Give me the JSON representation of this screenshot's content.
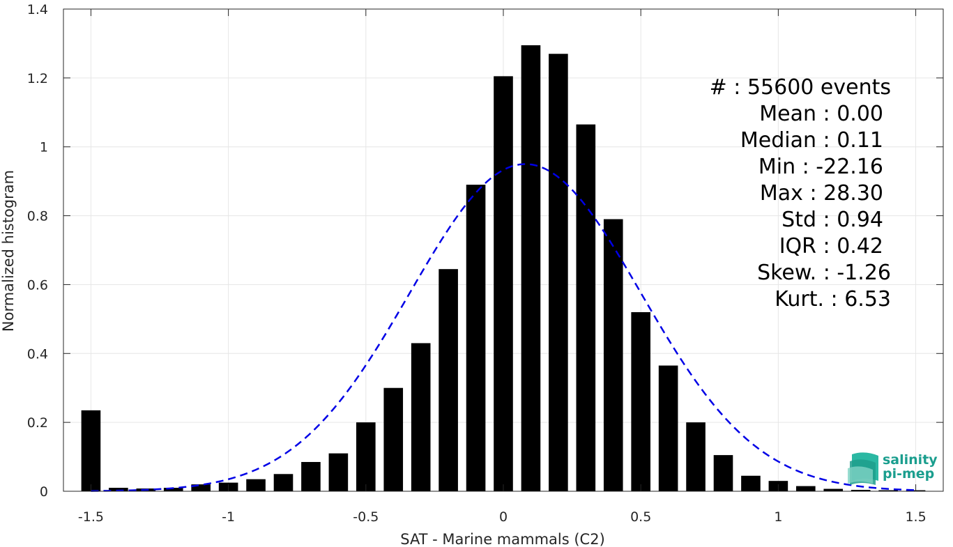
{
  "chart_data": {
    "type": "bar",
    "xlabel": "SAT - Marine mammals (C2)",
    "ylabel": "Normalized histogram",
    "xlim": [
      -1.6,
      1.6
    ],
    "ylim": [
      0,
      1.4
    ],
    "xticks": [
      -1.5,
      -1,
      -0.5,
      0,
      0.5,
      1,
      1.5
    ],
    "xtick_labels": [
      "-1.5",
      "-1",
      "-0.5",
      "0",
      "0.5",
      "1",
      "1.5"
    ],
    "yticks": [
      0,
      0.2,
      0.4,
      0.6,
      0.8,
      1,
      1.2,
      1.4
    ],
    "ytick_labels": [
      "0",
      "0.2",
      "0.4",
      "0.6",
      "0.8",
      "1",
      "1.2",
      "1.4"
    ],
    "grid": true,
    "bar_width": 0.07,
    "bar_color": "#000000",
    "x": [
      -1.5,
      -1.4,
      -1.3,
      -1.2,
      -1.1,
      -1.0,
      -0.9,
      -0.8,
      -0.7,
      -0.6,
      -0.5,
      -0.4,
      -0.3,
      -0.2,
      -0.1,
      0.0,
      0.1,
      0.2,
      0.3,
      0.4,
      0.5,
      0.6,
      0.7,
      0.8,
      0.9,
      1.0,
      1.1,
      1.2,
      1.3,
      1.4,
      1.5
    ],
    "values": [
      0.235,
      0.01,
      0.008,
      0.01,
      0.02,
      0.025,
      0.035,
      0.05,
      0.085,
      0.11,
      0.2,
      0.3,
      0.43,
      0.645,
      0.89,
      1.205,
      1.295,
      1.27,
      1.065,
      0.79,
      0.52,
      0.365,
      0.2,
      0.105,
      0.045,
      0.03,
      0.015,
      0.007,
      0.004,
      0.003,
      0.003
    ],
    "fit": {
      "type": "gaussian",
      "line_style": "dashed",
      "color": "#0000e6",
      "mean": 0.08,
      "std": 0.42,
      "peak": 0.95,
      "x_range": [
        -1.5,
        1.5
      ]
    },
    "stats": [
      "#  : 55600 events",
      "Mean : 0.00",
      "Median : 0.11",
      "Min : -22.16",
      "Max : 28.30",
      "Std : 0.94",
      "IQR : 0.42",
      "Skew. : -1.26",
      "Kurt. : 6.53"
    ]
  },
  "logo": {
    "line1": "salinity",
    "line2": "pi-mep",
    "color": "#1a9e8e"
  }
}
